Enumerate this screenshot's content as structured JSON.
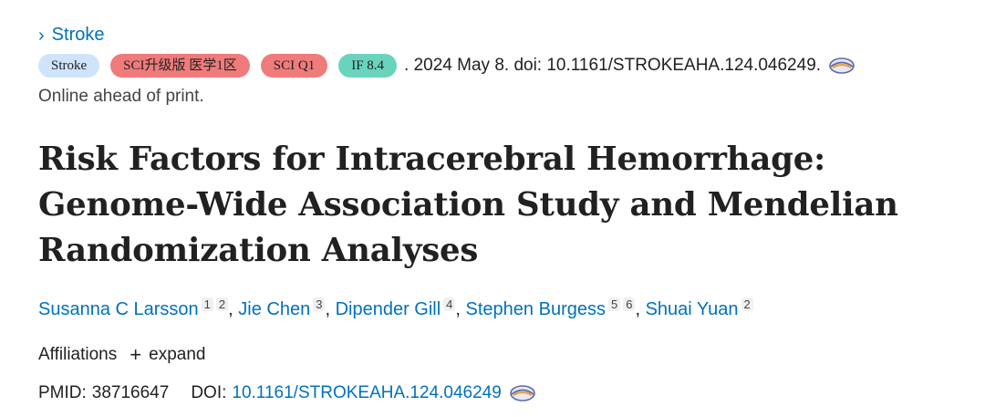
{
  "journal": {
    "chevron": "›",
    "name": "Stroke"
  },
  "badges": {
    "journal": "Stroke",
    "tier": "SCI升级版 医学1区",
    "quartile": "SCI Q1",
    "impact": "IF 8.4"
  },
  "citation": {
    "text": ". 2024 May 8. doi: 10.1161/STROKEAHA.124.046249.",
    "status": "Online ahead of print."
  },
  "article": {
    "title": "Risk Factors for Intracerebral Hemorrhage: Genome-Wide Association Study and Mendelian Randomization Analyses"
  },
  "authors": [
    {
      "name": "Susanna C Larsson",
      "affiliations": [
        "1",
        "2"
      ]
    },
    {
      "name": "Jie Chen",
      "affiliations": [
        "3"
      ]
    },
    {
      "name": "Dipender Gill",
      "affiliations": [
        "4"
      ]
    },
    {
      "name": "Stephen Burgess",
      "affiliations": [
        "5",
        "6"
      ]
    },
    {
      "name": "Shuai Yuan",
      "affiliations": [
        "2"
      ]
    }
  ],
  "affiliations": {
    "label": "Affiliations",
    "plus": "+",
    "expand_label": "expand"
  },
  "identifiers": {
    "pmid_label": "PMID:",
    "pmid": "38716647",
    "doi_label": "DOI:",
    "doi": "10.1161/STROKEAHA.124.046249"
  },
  "icons": {
    "ebook": "ebook-eye-icon"
  },
  "colors": {
    "link": "#0071bc",
    "badge_journal": "#cfe3fb",
    "badge_red": "#f07b7b",
    "badge_teal": "#69d3be"
  }
}
